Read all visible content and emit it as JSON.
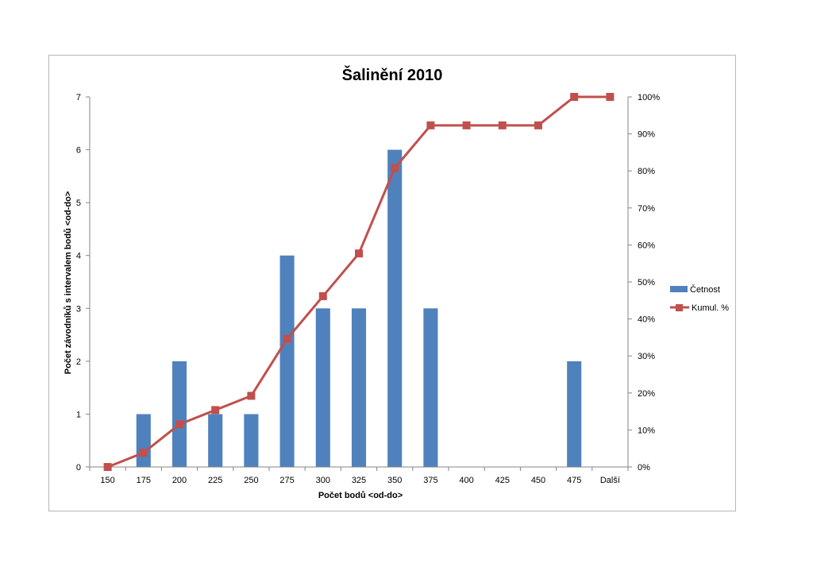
{
  "chart_data": {
    "type": "bar",
    "title": "Šalinění 2010",
    "xlabel": "Počet bodů <od-do>",
    "ylabel": "Počet závodníků s intervalem bodů <od-do>",
    "categories": [
      "150",
      "175",
      "200",
      "225",
      "250",
      "275",
      "300",
      "325",
      "350",
      "375",
      "400",
      "425",
      "450",
      "475",
      "Další"
    ],
    "ylim": [
      0,
      7
    ],
    "yticks": [
      "0",
      "1",
      "2",
      "3",
      "4",
      "5",
      "6",
      "7"
    ],
    "y2lim": [
      0,
      1
    ],
    "y2ticks": [
      "0%",
      "10%",
      "20%",
      "30%",
      "40%",
      "50%",
      "60%",
      "70%",
      "80%",
      "90%",
      "100%"
    ],
    "series": [
      {
        "name": "Četnost",
        "type": "bar",
        "axis": "left",
        "color": "#4f81bd",
        "values": [
          0,
          1,
          2,
          1,
          1,
          4,
          3,
          3,
          6,
          3,
          0,
          0,
          0,
          2,
          0
        ]
      },
      {
        "name": "Kumul. %",
        "type": "line",
        "axis": "right",
        "color": "#c0504d",
        "marker": "square",
        "values": [
          0.0,
          0.0385,
          0.1154,
          0.1538,
          0.1923,
          0.3462,
          0.4615,
          0.5769,
          0.8077,
          0.9231,
          0.9231,
          0.9231,
          0.9231,
          1.0,
          1.0
        ]
      }
    ],
    "legend": "right",
    "grid": false
  }
}
